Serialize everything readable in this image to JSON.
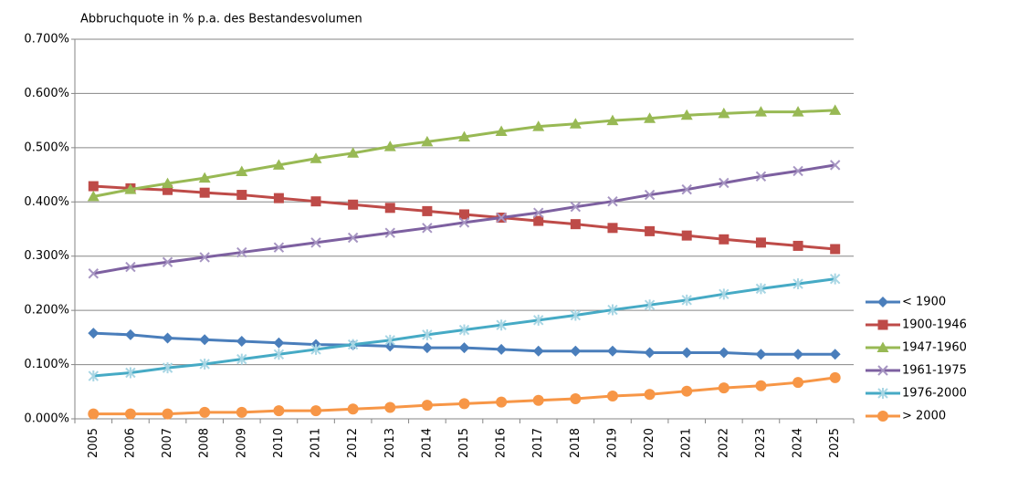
{
  "chart_data": {
    "type": "line",
    "title": "Abbruchquote in % p.a. des Bestandesvolumen",
    "categories": [
      "2005",
      "2006",
      "2007",
      "2008",
      "2009",
      "2010",
      "2011",
      "2012",
      "2013",
      "2014",
      "2015",
      "2016",
      "2017",
      "2018",
      "2019",
      "2020",
      "2021",
      "2022",
      "2023",
      "2024",
      "2025"
    ],
    "ylim": [
      0,
      0.7
    ],
    "yticks": [
      {
        "value": 0,
        "label": "0.000%"
      },
      {
        "value": 0.1,
        "label": "0.100%"
      },
      {
        "value": 0.2,
        "label": "0.200%"
      },
      {
        "value": 0.3,
        "label": "0.300%"
      },
      {
        "value": 0.4,
        "label": "0.400%"
      },
      {
        "value": 0.5,
        "label": "0.500%"
      },
      {
        "value": 0.6,
        "label": "0.600%"
      },
      {
        "value": 0.7,
        "label": "0.700%"
      }
    ],
    "grid": true,
    "legend": "right",
    "series": [
      {
        "name": "< 1900",
        "color": "#4a7ebb",
        "marker": "diamond",
        "values": [
          0.158,
          0.155,
          0.149,
          0.146,
          0.143,
          0.14,
          0.137,
          0.136,
          0.134,
          0.131,
          0.131,
          0.128,
          0.125,
          0.125,
          0.125,
          0.122,
          0.122,
          0.122,
          0.119,
          0.119,
          0.119
        ]
      },
      {
        "name": "1900-1946",
        "color": "#be4b48",
        "marker": "square",
        "values": [
          0.429,
          0.425,
          0.422,
          0.417,
          0.413,
          0.407,
          0.401,
          0.395,
          0.389,
          0.383,
          0.377,
          0.371,
          0.365,
          0.359,
          0.352,
          0.346,
          0.338,
          0.331,
          0.325,
          0.319,
          0.313
        ]
      },
      {
        "name": "1947-1960",
        "color": "#98b954",
        "marker": "triangle",
        "values": [
          0.41,
          0.423,
          0.434,
          0.444,
          0.456,
          0.468,
          0.48,
          0.49,
          0.502,
          0.511,
          0.52,
          0.53,
          0.539,
          0.544,
          0.55,
          0.554,
          0.56,
          0.563,
          0.566,
          0.566,
          0.569
        ]
      },
      {
        "name": "1961-1975",
        "color": "#7d60a0",
        "marker": "x",
        "values": [
          0.268,
          0.28,
          0.289,
          0.298,
          0.307,
          0.316,
          0.325,
          0.334,
          0.343,
          0.352,
          0.362,
          0.371,
          0.38,
          0.391,
          0.401,
          0.413,
          0.423,
          0.435,
          0.447,
          0.457,
          0.468
        ]
      },
      {
        "name": "1976-2000",
        "color": "#46aac5",
        "marker": "star",
        "values": [
          0.079,
          0.085,
          0.094,
          0.101,
          0.11,
          0.119,
          0.128,
          0.137,
          0.145,
          0.155,
          0.164,
          0.173,
          0.182,
          0.191,
          0.201,
          0.21,
          0.219,
          0.23,
          0.24,
          0.249,
          0.258
        ]
      },
      {
        "name": "> 2000",
        "color": "#f79646",
        "marker": "circle",
        "values": [
          0.009,
          0.009,
          0.009,
          0.012,
          0.012,
          0.015,
          0.015,
          0.018,
          0.021,
          0.025,
          0.028,
          0.031,
          0.034,
          0.037,
          0.042,
          0.045,
          0.051,
          0.057,
          0.061,
          0.067,
          0.076
        ]
      }
    ]
  }
}
